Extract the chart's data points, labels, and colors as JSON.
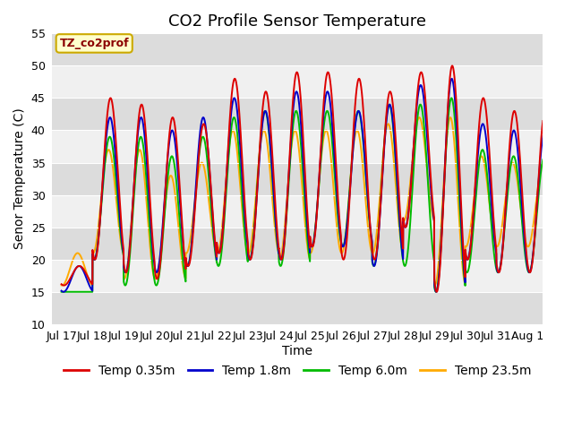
{
  "title": "CO2 Profile Sensor Temperature",
  "xlabel": "Time",
  "ylabel": "Senor Temperature (C)",
  "ylim": [
    10,
    55
  ],
  "xlim_days": [
    -0.3,
    15.5
  ],
  "xtick_labels": [
    "Jul 17",
    "Jul 18",
    "Jul 19",
    "Jul 20",
    "Jul 21",
    "Jul 22",
    "Jul 23",
    "Jul 24",
    "Jul 25",
    "Jul 26",
    "Jul 27",
    "Jul 28",
    "Jul 29",
    "Jul 30",
    "Jul 31",
    "Aug 1"
  ],
  "xtick_positions": [
    0,
    1,
    2,
    3,
    4,
    5,
    6,
    7,
    8,
    9,
    10,
    11,
    12,
    13,
    14,
    15
  ],
  "annotation_text": "TZ_co2prof",
  "colors": {
    "red": "#dd0000",
    "blue": "#0000cc",
    "green": "#00bb00",
    "orange": "#ffaa00"
  },
  "legend_labels": [
    "Temp 0.35m",
    "Temp 1.8m",
    "Temp 6.0m",
    "Temp 23.5m"
  ],
  "plot_bg_light": "#f0f0f0",
  "plot_bg_dark": "#dcdcdc",
  "fig_bg": "#ffffff",
  "title_fontsize": 13,
  "axis_label_fontsize": 10,
  "tick_fontsize": 9,
  "legend_fontsize": 10,
  "series_peaks": {
    "red": [
      19,
      45,
      44,
      42,
      41,
      48,
      46,
      49,
      49,
      48,
      46,
      49,
      50,
      45,
      43
    ],
    "blue": [
      19,
      42,
      42,
      40,
      42,
      45,
      43,
      46,
      46,
      43,
      44,
      47,
      48,
      41,
      40
    ],
    "green": [
      15,
      39,
      39,
      36,
      39,
      42,
      43,
      43,
      43,
      43,
      44,
      44,
      45,
      37,
      36
    ],
    "orange": [
      21,
      37,
      37,
      33,
      35,
      40,
      40,
      40,
      40,
      40,
      41,
      42,
      42,
      36,
      35
    ]
  },
  "series_troughs": {
    "red": [
      16,
      20,
      18,
      17,
      19,
      21,
      20,
      20,
      22,
      20,
      20,
      25,
      15,
      20,
      18
    ],
    "blue": [
      15,
      20,
      18,
      18,
      19,
      21,
      20,
      20,
      22,
      22,
      19,
      25,
      15,
      20,
      18
    ],
    "green": [
      15,
      20,
      16,
      16,
      19,
      19,
      20,
      19,
      22,
      22,
      19,
      19,
      15,
      18,
      18
    ],
    "orange": [
      16,
      21,
      17,
      17,
      21,
      21,
      21,
      20,
      21,
      21,
      21,
      26,
      16,
      22,
      22
    ]
  },
  "peak_phase": 0.58,
  "phase_offsets": {
    "red": 0.0,
    "blue": 0.015,
    "green": 0.025,
    "orange": 0.06
  }
}
